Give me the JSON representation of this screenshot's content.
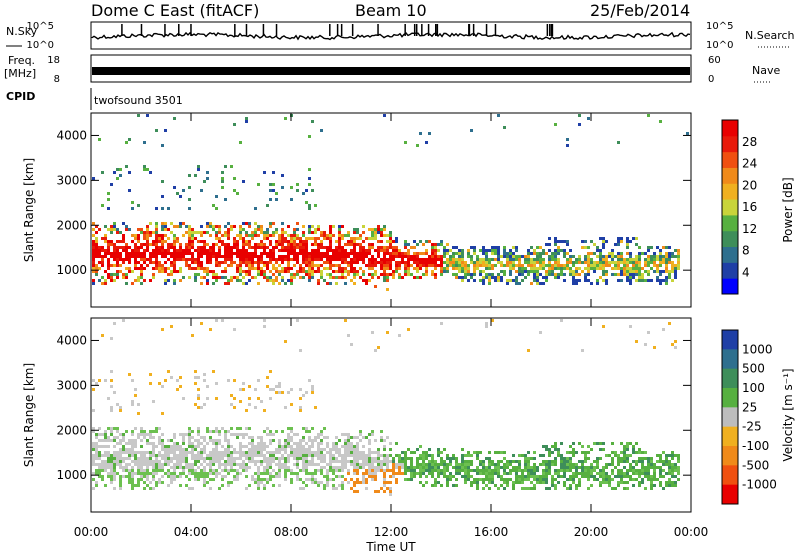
{
  "header": {
    "station": "Dome C East (fitACF)",
    "beam": "Beam 10",
    "date": "25/Feb/2014"
  },
  "panel_labels": {
    "nsky": "N.Sky",
    "nsearch": "N.Search",
    "freq_line1": "Freq.",
    "freq_line2": "[MHz]",
    "nave": "Nave",
    "cpid": "CPID",
    "cpid_value": "twofsound 3501"
  },
  "chart_data": [
    {
      "type": "line",
      "name": "noise",
      "ylabel_left": "N.Sky",
      "ylabel_right": "N.Search",
      "left_ticks": [
        "10^5",
        "10^0"
      ],
      "right_ticks": [
        "10^5",
        "10^0"
      ],
      "ylim_log10": [
        0,
        5
      ],
      "note": "dense noisy trace with spikes"
    },
    {
      "type": "line",
      "name": "frequency",
      "ylabel_left": "Freq. [MHz]",
      "ylabel_right": "Nave",
      "left_ticks": [
        "18",
        "8"
      ],
      "right_ticks": [
        "60",
        "0"
      ],
      "ylim_left": [
        8,
        18
      ],
      "ylim_right": [
        0,
        60
      ]
    },
    {
      "type": "heatmap",
      "name": "power",
      "ylabel": "Slant Range [km]",
      "yticks": [
        "1000",
        "2000",
        "3000",
        "4000"
      ],
      "ylim": [
        180,
        4500
      ],
      "xlim_hours": [
        0,
        24
      ],
      "colorbar_label": "Power [dB]",
      "colorbar_ticks": [
        "4",
        "8",
        "12",
        "16",
        "20",
        "24",
        "28"
      ],
      "colorbar_colors": [
        "#0000ff",
        "#1f3fa6",
        "#2e6f8e",
        "#3e8e5a",
        "#57b040",
        "#c8d43a",
        "#f0b020",
        "#f08a1a",
        "#f05010",
        "#e81a0a",
        "#e80000"
      ]
    },
    {
      "type": "heatmap",
      "name": "velocity",
      "ylabel": "Slant Range [km]",
      "yticks": [
        "1000",
        "2000",
        "3000",
        "4000"
      ],
      "ylim": [
        180,
        4500
      ],
      "xlim_hours": [
        0,
        24
      ],
      "colorbar_label": "Velocity [m s⁻¹]",
      "colorbar_ticks": [
        "1000",
        "500",
        "100",
        "25",
        "-25",
        "-100",
        "-500",
        "-1000"
      ],
      "colorbar_colors": [
        "#1f3fa6",
        "#2e6f8e",
        "#3e8e5a",
        "#57b040",
        "#bdbdbd",
        "#f0b020",
        "#f08a1a",
        "#f05010",
        "#e80000"
      ]
    }
  ],
  "xaxis": {
    "label": "Time UT",
    "ticks": [
      "00:00",
      "04:00",
      "08:00",
      "12:00",
      "16:00",
      "20:00",
      "00:00"
    ]
  }
}
